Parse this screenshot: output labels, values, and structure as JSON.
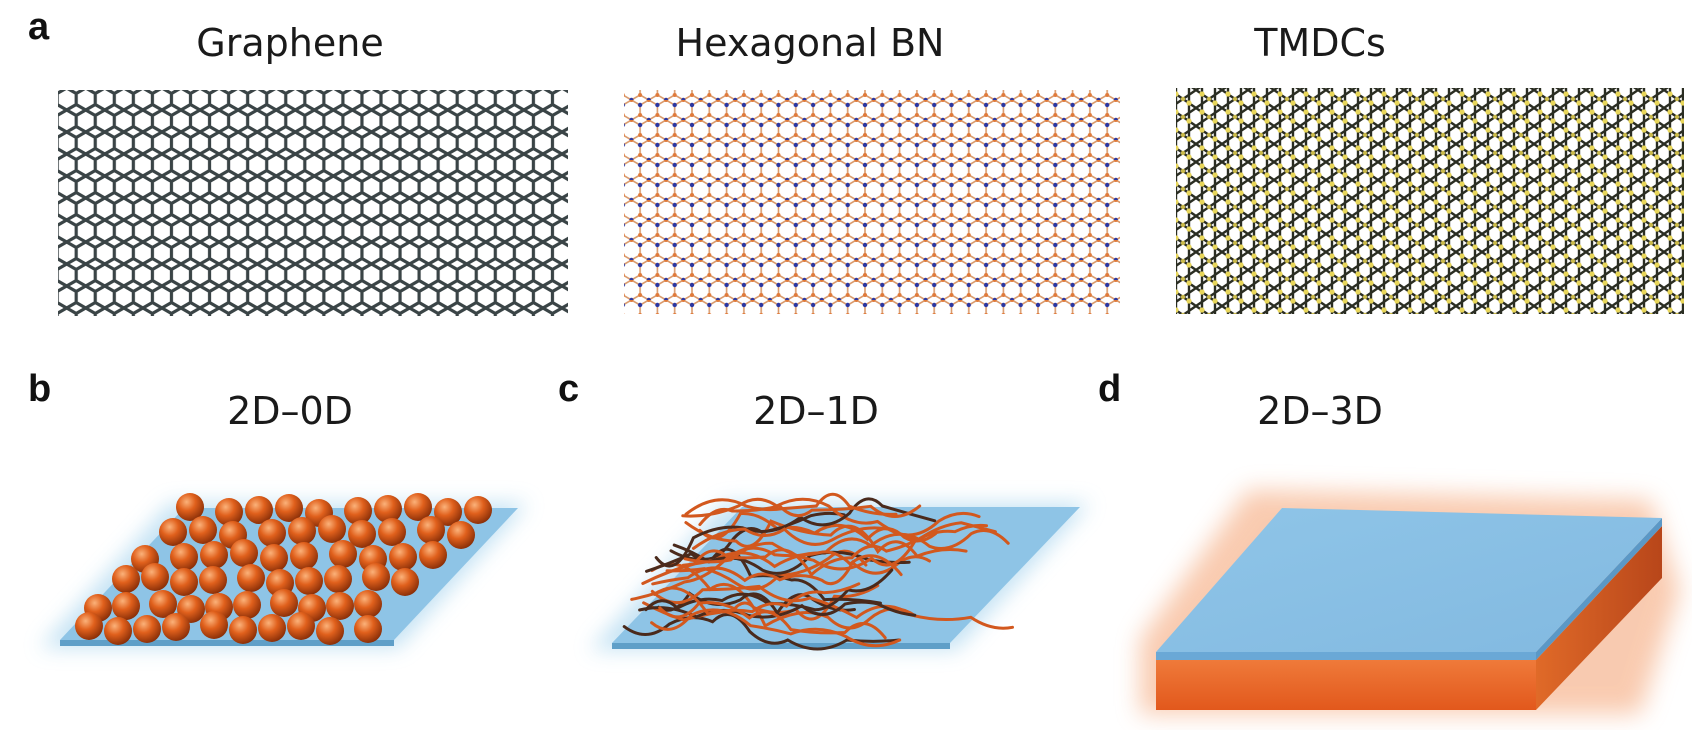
{
  "panels": {
    "a": {
      "letter": "a",
      "titles": [
        "Graphene",
        "Hexagonal BN",
        "TMDCs"
      ]
    },
    "b": {
      "letter": "b",
      "title": "2D–0D"
    },
    "c": {
      "letter": "c",
      "title": "2D–1D"
    },
    "d": {
      "letter": "d",
      "title": "2D–3D"
    }
  },
  "colors": {
    "graphene": "#3a4446",
    "bn_bond": "#d99a6c",
    "bn_atom_n": "#2b36a0",
    "bn_atom_b": "#e07a3a",
    "tmdc_bond": "#2a2d22",
    "tmdc_atom": "#e8d65a",
    "substrate": "#8ec4e6",
    "substrate_glow": "#bfe0f3",
    "sphere": "#e0601c",
    "wire": "#d2581e",
    "wire_dark": "#4a2a1c",
    "bulk_side": "#e66a2a"
  },
  "icons": [
    "graphene-lattice",
    "hbn-lattice",
    "tmdc-lattice",
    "nanoparticle-layer",
    "nanowire-layer",
    "bulk-slab"
  ]
}
